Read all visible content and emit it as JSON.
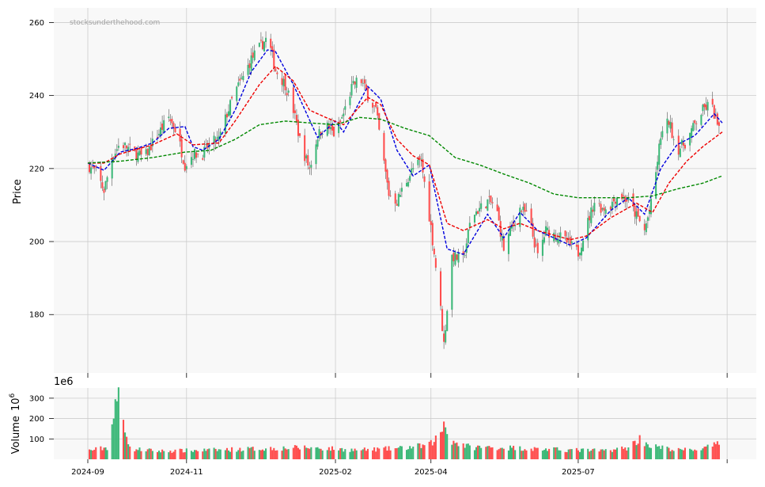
{
  "watermark": "stocksunderthehood.com",
  "colors": {
    "up": "#3cb878",
    "down": "#ff4d4d",
    "ma_short": "#0000dd",
    "ma_mid": "#ee0000",
    "ma_long": "#008800",
    "panel_bg": "#f8f8f8",
    "grid": "#cccccc"
  },
  "chart_data": [
    {
      "type": "candlestick",
      "ylabel": "Price",
      "ylim": [
        164,
        264
      ],
      "yticks": [
        180,
        200,
        220,
        240,
        260
      ],
      "xticks": [
        "2024-09",
        "2024-11",
        "2025-02",
        "2025-04",
        "2025-07"
      ],
      "grid": true,
      "close_anchors": [
        {
          "d": "2024-09-01",
          "v": 221
        },
        {
          "d": "2024-09-06",
          "v": 219
        },
        {
          "d": "2024-09-11",
          "v": 214
        },
        {
          "d": "2024-09-16",
          "v": 223
        },
        {
          "d": "2024-09-21",
          "v": 227
        },
        {
          "d": "2024-10-01",
          "v": 224
        },
        {
          "d": "2024-10-06",
          "v": 223
        },
        {
          "d": "2024-10-11",
          "v": 227
        },
        {
          "d": "2024-10-21",
          "v": 234
        },
        {
          "d": "2024-10-26",
          "v": 230
        },
        {
          "d": "2024-10-31",
          "v": 221
        },
        {
          "d": "2024-11-05",
          "v": 224
        },
        {
          "d": "2024-11-11",
          "v": 224
        },
        {
          "d": "2024-11-16",
          "v": 227
        },
        {
          "d": "2024-11-21",
          "v": 228
        },
        {
          "d": "2024-11-26",
          "v": 235
        },
        {
          "d": "2024-12-01",
          "v": 241
        },
        {
          "d": "2024-12-06",
          "v": 245
        },
        {
          "d": "2024-12-11",
          "v": 250
        },
        {
          "d": "2024-12-16",
          "v": 253
        },
        {
          "d": "2024-12-21",
          "v": 256
        },
        {
          "d": "2024-12-26",
          "v": 247
        },
        {
          "d": "2025-01-01",
          "v": 243
        },
        {
          "d": "2025-01-06",
          "v": 236
        },
        {
          "d": "2025-01-11",
          "v": 226
        },
        {
          "d": "2025-01-16",
          "v": 220
        },
        {
          "d": "2025-01-21",
          "v": 229
        },
        {
          "d": "2025-01-26",
          "v": 232
        },
        {
          "d": "2025-02-01",
          "v": 229
        },
        {
          "d": "2025-02-06",
          "v": 235
        },
        {
          "d": "2025-02-11",
          "v": 242
        },
        {
          "d": "2025-02-16",
          "v": 245
        },
        {
          "d": "2025-02-21",
          "v": 240
        },
        {
          "d": "2025-02-26",
          "v": 236
        },
        {
          "d": "2025-03-01",
          "v": 227
        },
        {
          "d": "2025-03-06",
          "v": 213
        },
        {
          "d": "2025-03-11",
          "v": 211
        },
        {
          "d": "2025-03-16",
          "v": 216
        },
        {
          "d": "2025-03-21",
          "v": 220
        },
        {
          "d": "2025-03-26",
          "v": 222
        },
        {
          "d": "2025-04-01",
          "v": 204
        },
        {
          "d": "2025-04-06",
          "v": 186
        },
        {
          "d": "2025-04-09",
          "v": 172
        },
        {
          "d": "2025-04-14",
          "v": 196
        },
        {
          "d": "2025-04-21",
          "v": 195
        },
        {
          "d": "2025-04-26",
          "v": 207
        },
        {
          "d": "2025-05-06",
          "v": 211
        },
        {
          "d": "2025-05-11",
          "v": 210
        },
        {
          "d": "2025-05-16",
          "v": 198
        },
        {
          "d": "2025-05-21",
          "v": 204
        },
        {
          "d": "2025-05-26",
          "v": 209
        },
        {
          "d": "2025-05-31",
          "v": 207
        },
        {
          "d": "2025-06-06",
          "v": 196
        },
        {
          "d": "2025-06-11",
          "v": 203
        },
        {
          "d": "2025-06-21",
          "v": 201
        },
        {
          "d": "2025-06-26",
          "v": 199
        },
        {
          "d": "2025-07-01",
          "v": 197
        },
        {
          "d": "2025-07-06",
          "v": 204
        },
        {
          "d": "2025-07-11",
          "v": 211
        },
        {
          "d": "2025-07-16",
          "v": 209
        },
        {
          "d": "2025-07-21",
          "v": 210
        },
        {
          "d": "2025-07-26",
          "v": 213
        },
        {
          "d": "2025-08-01",
          "v": 211
        },
        {
          "d": "2025-08-06",
          "v": 207
        },
        {
          "d": "2025-08-11",
          "v": 203
        },
        {
          "d": "2025-08-16",
          "v": 212
        },
        {
          "d": "2025-08-21",
          "v": 229
        },
        {
          "d": "2025-08-26",
          "v": 233
        },
        {
          "d": "2025-08-31",
          "v": 225
        },
        {
          "d": "2025-09-05",
          "v": 227
        },
        {
          "d": "2025-09-11",
          "v": 232
        },
        {
          "d": "2025-09-16",
          "v": 236
        },
        {
          "d": "2025-09-21",
          "v": 238
        },
        {
          "d": "2025-09-28",
          "v": 227
        }
      ],
      "moving_averages": [
        {
          "color": "#0000dd",
          "points": [
            {
              "d": "2024-09-01",
              "v": 221.5
            },
            {
              "d": "2024-09-11",
              "v": 219.5
            },
            {
              "d": "2024-09-21",
              "v": 224.5
            },
            {
              "d": "2024-10-01",
              "v": 225.5
            },
            {
              "d": "2024-10-11",
              "v": 227
            },
            {
              "d": "2024-10-21",
              "v": 231
            },
            {
              "d": "2024-10-31",
              "v": 231.5
            },
            {
              "d": "2024-11-05",
              "v": 226
            },
            {
              "d": "2024-11-11",
              "v": 225
            },
            {
              "d": "2024-11-21",
              "v": 228
            },
            {
              "d": "2024-12-01",
              "v": 236
            },
            {
              "d": "2024-12-11",
              "v": 246.5
            },
            {
              "d": "2024-12-21",
              "v": 252.5
            },
            {
              "d": "2024-12-26",
              "v": 252
            },
            {
              "d": "2025-01-06",
              "v": 243
            },
            {
              "d": "2025-01-21",
              "v": 228.5
            },
            {
              "d": "2025-02-01",
              "v": 233
            },
            {
              "d": "2025-02-06",
              "v": 230
            },
            {
              "d": "2025-02-21",
              "v": 242.5
            },
            {
              "d": "2025-03-01",
              "v": 239
            },
            {
              "d": "2025-03-11",
              "v": 225
            },
            {
              "d": "2025-03-21",
              "v": 218
            },
            {
              "d": "2025-03-31",
              "v": 221
            },
            {
              "d": "2025-04-11",
              "v": 198
            },
            {
              "d": "2025-04-21",
              "v": 196.5
            },
            {
              "d": "2025-05-06",
              "v": 207.5
            },
            {
              "d": "2025-05-16",
              "v": 201
            },
            {
              "d": "2025-05-26",
              "v": 208
            },
            {
              "d": "2025-06-06",
              "v": 203
            },
            {
              "d": "2025-06-26",
              "v": 199
            },
            {
              "d": "2025-07-06",
              "v": 201
            },
            {
              "d": "2025-07-21",
              "v": 208.5
            },
            {
              "d": "2025-08-01",
              "v": 212
            },
            {
              "d": "2025-08-11",
              "v": 207.5
            },
            {
              "d": "2025-08-21",
              "v": 220
            },
            {
              "d": "2025-08-31",
              "v": 226.5
            },
            {
              "d": "2025-09-11",
              "v": 229
            },
            {
              "d": "2025-09-23",
              "v": 235
            },
            {
              "d": "2025-09-28",
              "v": 232.5
            }
          ]
        },
        {
          "color": "#ee0000",
          "points": [
            {
              "d": "2024-09-01",
              "v": 221.5
            },
            {
              "d": "2024-09-11",
              "v": 221.5
            },
            {
              "d": "2024-09-21",
              "v": 224
            },
            {
              "d": "2024-10-11",
              "v": 226.5
            },
            {
              "d": "2024-10-26",
              "v": 229.5
            },
            {
              "d": "2024-11-05",
              "v": 226.5
            },
            {
              "d": "2024-11-21",
              "v": 227
            },
            {
              "d": "2024-12-01",
              "v": 233
            },
            {
              "d": "2024-12-16",
              "v": 243
            },
            {
              "d": "2024-12-26",
              "v": 248
            },
            {
              "d": "2025-01-06",
              "v": 244
            },
            {
              "d": "2025-01-16",
              "v": 236
            },
            {
              "d": "2025-01-26",
              "v": 234
            },
            {
              "d": "2025-02-06",
              "v": 232
            },
            {
              "d": "2025-02-21",
              "v": 239.5
            },
            {
              "d": "2025-03-01",
              "v": 237.5
            },
            {
              "d": "2025-03-11",
              "v": 228
            },
            {
              "d": "2025-03-21",
              "v": 223.5
            },
            {
              "d": "2025-03-31",
              "v": 221
            },
            {
              "d": "2025-04-11",
              "v": 205
            },
            {
              "d": "2025-04-21",
              "v": 203
            },
            {
              "d": "2025-05-06",
              "v": 206
            },
            {
              "d": "2025-05-16",
              "v": 203.5
            },
            {
              "d": "2025-05-26",
              "v": 205
            },
            {
              "d": "2025-06-06",
              "v": 203
            },
            {
              "d": "2025-06-26",
              "v": 200.5
            },
            {
              "d": "2025-07-06",
              "v": 201.5
            },
            {
              "d": "2025-07-21",
              "v": 206.5
            },
            {
              "d": "2025-08-06",
              "v": 210.5
            },
            {
              "d": "2025-08-16",
              "v": 208
            },
            {
              "d": "2025-08-26",
              "v": 216
            },
            {
              "d": "2025-09-06",
              "v": 222
            },
            {
              "d": "2025-09-16",
              "v": 226
            },
            {
              "d": "2025-09-28",
              "v": 230
            }
          ]
        },
        {
          "color": "#008800",
          "points": [
            {
              "d": "2024-09-01",
              "v": 221.5
            },
            {
              "d": "2024-09-21",
              "v": 222
            },
            {
              "d": "2024-10-11",
              "v": 223
            },
            {
              "d": "2024-10-31",
              "v": 224.5
            },
            {
              "d": "2024-11-16",
              "v": 225
            },
            {
              "d": "2024-12-01",
              "v": 228
            },
            {
              "d": "2024-12-16",
              "v": 232
            },
            {
              "d": "2025-01-01",
              "v": 233
            },
            {
              "d": "2025-01-16",
              "v": 232.5
            },
            {
              "d": "2025-02-01",
              "v": 232
            },
            {
              "d": "2025-02-16",
              "v": 234
            },
            {
              "d": "2025-03-01",
              "v": 233.5
            },
            {
              "d": "2025-03-16",
              "v": 231
            },
            {
              "d": "2025-03-31",
              "v": 229
            },
            {
              "d": "2025-04-16",
              "v": 223
            },
            {
              "d": "2025-05-01",
              "v": 221
            },
            {
              "d": "2025-05-16",
              "v": 218.5
            },
            {
              "d": "2025-06-01",
              "v": 216
            },
            {
              "d": "2025-06-16",
              "v": 213
            },
            {
              "d": "2025-07-01",
              "v": 212
            },
            {
              "d": "2025-07-16",
              "v": 212
            },
            {
              "d": "2025-08-01",
              "v": 212
            },
            {
              "d": "2025-08-16",
              "v": 212.5
            },
            {
              "d": "2025-09-01",
              "v": 214.5
            },
            {
              "d": "2025-09-16",
              "v": 216
            },
            {
              "d": "2025-09-28",
              "v": 218
            }
          ]
        }
      ]
    },
    {
      "type": "bar",
      "ylabel": "Volume",
      "scale_label": "1e6",
      "ylabel_unit": "10",
      "ylabel_exp": "6",
      "ylim": [
        0,
        350
      ],
      "yticks": [
        100,
        200,
        300
      ],
      "grid": true,
      "volume_anchors": [
        {
          "d": "2024-09-01",
          "v": 42
        },
        {
          "d": "2024-09-13",
          "v": 58
        },
        {
          "d": "2024-09-20",
          "v": 320
        },
        {
          "d": "2024-09-27",
          "v": 52
        },
        {
          "d": "2024-10-15",
          "v": 40
        },
        {
          "d": "2024-11-15",
          "v": 45
        },
        {
          "d": "2024-12-15",
          "v": 52
        },
        {
          "d": "2025-01-15",
          "v": 58
        },
        {
          "d": "2025-02-15",
          "v": 45
        },
        {
          "d": "2025-03-15",
          "v": 55
        },
        {
          "d": "2025-03-31",
          "v": 70
        },
        {
          "d": "2025-04-07",
          "v": 125
        },
        {
          "d": "2025-04-09",
          "v": 180
        },
        {
          "d": "2025-04-14",
          "v": 90
        },
        {
          "d": "2025-04-25",
          "v": 60
        },
        {
          "d": "2025-05-15",
          "v": 58
        },
        {
          "d": "2025-06-15",
          "v": 48
        },
        {
          "d": "2025-07-15",
          "v": 42
        },
        {
          "d": "2025-07-31",
          "v": 55
        },
        {
          "d": "2025-08-08",
          "v": 100
        },
        {
          "d": "2025-08-15",
          "v": 65
        },
        {
          "d": "2025-08-31",
          "v": 45
        },
        {
          "d": "2025-09-15",
          "v": 50
        },
        {
          "d": "2025-09-28",
          "v": 78
        }
      ]
    }
  ]
}
